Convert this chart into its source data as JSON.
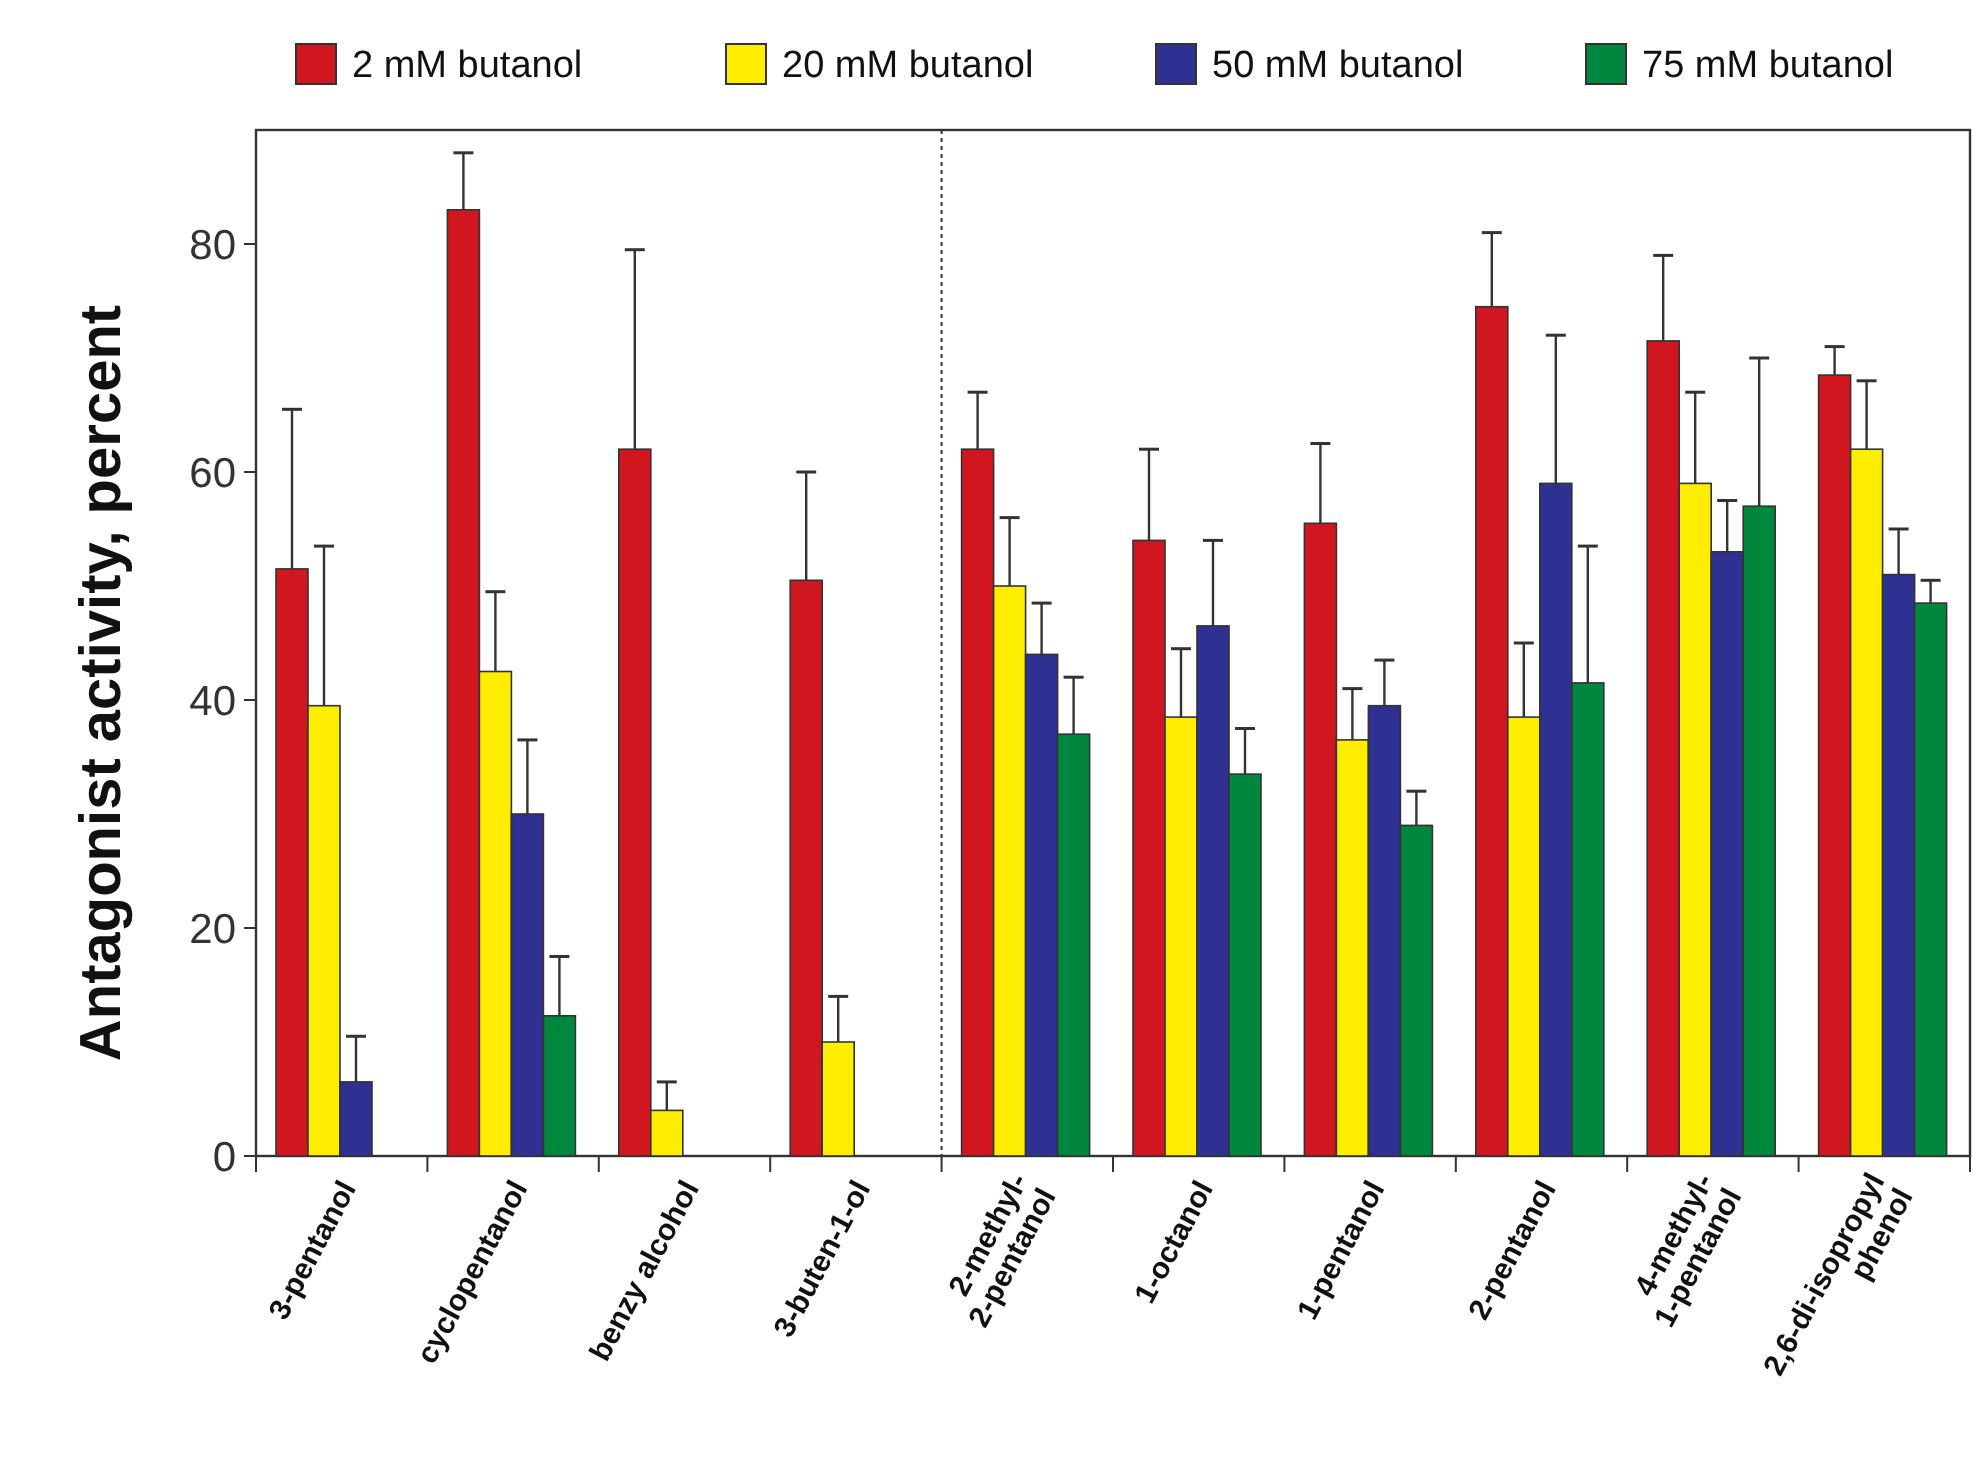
{
  "chart_data": {
    "type": "bar",
    "ylabel": "Antagonist activity, percent",
    "categories": [
      "3-pentanol",
      "cyclopentanol",
      "benzy alcohol",
      "3-buten-1-ol",
      "2-methyl-\n2-pentanol",
      "1-octanol",
      "1-pentanol",
      "2-pentanol",
      "4-methyl-\n1-pentanol",
      "2,6-di-isopropyl\nphenol"
    ],
    "series": [
      {
        "name": "2 mM butanol",
        "color": "#d0161f",
        "values": [
          51.5,
          83,
          62,
          50.5,
          62,
          54,
          55.5,
          74.5,
          71.5,
          68.5
        ],
        "errors": [
          [
            51.5,
            65.5
          ],
          [
            83,
            88
          ],
          [
            62,
            79.5
          ],
          [
            50.5,
            60
          ],
          [
            62,
            67
          ],
          [
            54,
            62
          ],
          [
            55.5,
            62.5
          ],
          [
            74.5,
            81
          ],
          [
            71.5,
            79
          ],
          [
            68.5,
            71
          ]
        ]
      },
      {
        "name": "20 mM butanol",
        "color": "#ffed00",
        "values": [
          39.5,
          42.5,
          4,
          10,
          50,
          38.5,
          36.5,
          38.5,
          59,
          62
        ],
        "errors": [
          [
            39.5,
            53.5
          ],
          [
            42.5,
            49.5
          ],
          [
            4,
            6.5
          ],
          [
            10,
            14
          ],
          [
            50,
            56
          ],
          [
            38.5,
            44.5
          ],
          [
            36.5,
            41
          ],
          [
            38.5,
            45
          ],
          [
            59,
            67
          ],
          [
            62,
            68
          ]
        ]
      },
      {
        "name": "50 mM butanol",
        "color": "#2e3192",
        "values": [
          6.5,
          30,
          null,
          null,
          44,
          46.5,
          39.5,
          59,
          53,
          51
        ],
        "errors": [
          [
            6.5,
            10.5
          ],
          [
            30,
            36.5
          ],
          null,
          null,
          [
            44,
            48.5
          ],
          [
            46.5,
            54
          ],
          [
            39.5,
            43.5
          ],
          [
            59,
            72
          ],
          [
            53,
            57.5
          ],
          [
            51,
            55
          ]
        ]
      },
      {
        "name": "75 mM butanol",
        "color": "#00873e",
        "values": [
          null,
          12.3,
          null,
          null,
          37,
          33.5,
          29,
          41.5,
          57,
          48.5
        ],
        "errors": [
          null,
          [
            12.3,
            17.5
          ],
          null,
          null,
          [
            37,
            42
          ],
          [
            33.5,
            37.5
          ],
          [
            29,
            32
          ],
          [
            41.5,
            53.5
          ],
          [
            57,
            70
          ],
          [
            48.5,
            50.5
          ]
        ]
      }
    ],
    "ylim": [
      0,
      90
    ],
    "yticks": [
      0,
      20,
      40,
      60,
      80
    ],
    "grid": false,
    "legend": "top"
  }
}
